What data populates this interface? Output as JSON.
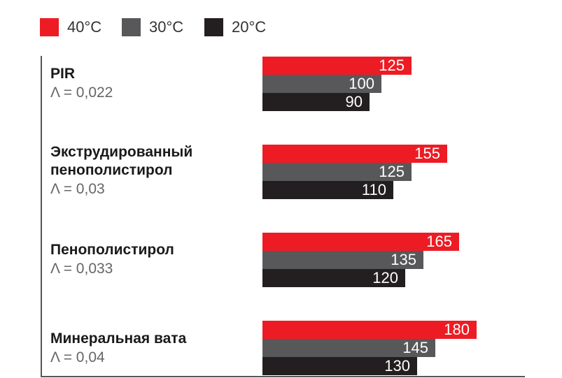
{
  "colors": {
    "40": "#ed1c24",
    "30": "#58585a",
    "20": "#231f20"
  },
  "legend": [
    {
      "label": "40°C",
      "color": "#ed1c24"
    },
    {
      "label": "30°C",
      "color": "#58585a"
    },
    {
      "label": "20°C",
      "color": "#231f20"
    }
  ],
  "chart_data": {
    "type": "bar",
    "orientation": "horizontal",
    "categories": [
      {
        "name_lines": [
          "PIR"
        ],
        "lambda": "Λ = 0,022"
      },
      {
        "name_lines": [
          "Экструдированный",
          "пенополистирол"
        ],
        "lambda": "Λ = 0,03"
      },
      {
        "name_lines": [
          "Пенополистирол"
        ],
        "lambda": "Λ = 0,033"
      },
      {
        "name_lines": [
          "Минеральная вата"
        ],
        "lambda": "Λ = 0,04"
      }
    ],
    "series": [
      {
        "name": "40°C",
        "color": "#ed1c24",
        "values": [
          125,
          155,
          165,
          180
        ]
      },
      {
        "name": "30°C",
        "color": "#58585a",
        "values": [
          100,
          125,
          135,
          145
        ]
      },
      {
        "name": "20°C",
        "color": "#231f20",
        "values": [
          90,
          110,
          120,
          130
        ]
      }
    ],
    "xlim": [
      0,
      180
    ],
    "grid": false,
    "legend_position": "top-left"
  }
}
